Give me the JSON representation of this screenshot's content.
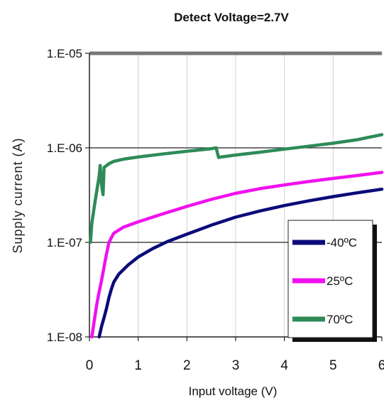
{
  "chart_data": {
    "type": "line",
    "title": "Detect Voltage=2.7V",
    "xlabel": "Input voltage (V)",
    "ylabel": "Supply current (A)",
    "xlim": [
      0,
      6
    ],
    "ylim": [
      1e-08,
      1e-05
    ],
    "yscale": "log",
    "x_ticks": [
      "0",
      "1",
      "2",
      "3",
      "4",
      "5",
      "6"
    ],
    "y_ticks": [
      "1.E-05",
      "1.E-06",
      "1.E-07",
      "1.E-08"
    ],
    "grid": true,
    "legend_position": "bottom-right",
    "series": [
      {
        "name": "-40ºC",
        "color": "#0b0b7a",
        "x": [
          0.2,
          0.25,
          0.3,
          0.35,
          0.4,
          0.45,
          0.5,
          0.6,
          0.8,
          1.0,
          1.3,
          1.6,
          2.0,
          2.5,
          3.0,
          3.5,
          4.0,
          4.5,
          5.0,
          5.5,
          6.0
        ],
        "y": [
          1e-08,
          1.3e-08,
          1.6e-08,
          2e-08,
          2.6e-08,
          3.2e-08,
          3.8e-08,
          4.6e-08,
          5.8e-08,
          7e-08,
          8.6e-08,
          1.02e-07,
          1.22e-07,
          1.52e-07,
          1.85e-07,
          2.15e-07,
          2.45e-07,
          2.75e-07,
          3.05e-07,
          3.35e-07,
          3.65e-07
        ]
      },
      {
        "name": "25ºC",
        "color": "#f010f0",
        "x": [
          0.05,
          0.1,
          0.15,
          0.2,
          0.25,
          0.3,
          0.35,
          0.4,
          0.5,
          0.7,
          1.0,
          1.5,
          2.0,
          2.5,
          3.0,
          3.5,
          4.0,
          4.5,
          5.0,
          5.5,
          6.0
        ],
        "y": [
          1e-08,
          1.5e-08,
          2.2e-08,
          3e-08,
          4e-08,
          5.5e-08,
          7.5e-08,
          1e-07,
          1.25e-07,
          1.45e-07,
          1.65e-07,
          2e-07,
          2.4e-07,
          2.85e-07,
          3.3e-07,
          3.7e-07,
          4.05e-07,
          4.4e-07,
          4.75e-07,
          5.1e-07,
          5.5e-07
        ]
      },
      {
        "name": "70ºC",
        "color": "#2e8b57",
        "x": [
          0.02,
          0.05,
          0.1,
          0.15,
          0.2,
          0.22,
          0.25,
          0.28,
          0.3,
          0.4,
          0.5,
          0.7,
          1.0,
          1.5,
          2.0,
          2.5,
          2.6,
          2.65,
          2.7,
          3.0,
          3.5,
          4.0,
          4.5,
          5.0,
          5.5,
          6.0
        ],
        "y": [
          1e-07,
          1.6e-07,
          2.4e-07,
          3.5e-07,
          5e-07,
          6.5e-07,
          4e-07,
          3.2e-07,
          6.2e-07,
          6.8e-07,
          7.2e-07,
          7.6e-07,
          8e-07,
          8.6e-07,
          9.2e-07,
          9.8e-07,
          1e-06,
          7.9e-07,
          8e-07,
          8.4e-07,
          9e-07,
          9.7e-07,
          1.04e-06,
          1.12e-06,
          1.22e-06,
          1.38e-06
        ]
      }
    ]
  }
}
